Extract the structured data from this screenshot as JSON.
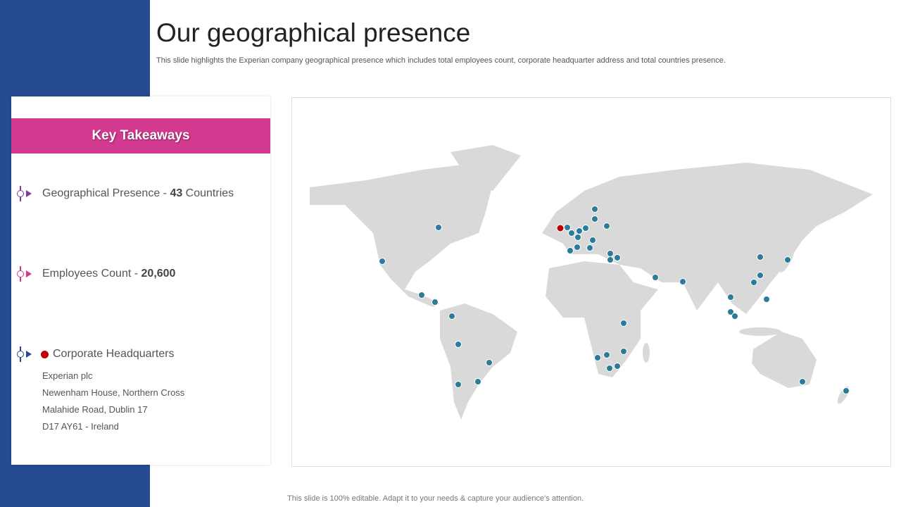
{
  "header": {
    "title": "Our geographical presence",
    "subtitle": "This slide highlights the Experian company geographical presence which includes total employees count, corporate headquarter address and total countries presence."
  },
  "takeaways": {
    "heading": "Key Takeaways",
    "items": [
      {
        "label": "Geographical Presence - ",
        "value": "43",
        "suffix": " Countries",
        "color": "#7b3f98"
      },
      {
        "label": "Employees Count - ",
        "value": "20,600",
        "color": "#d33a8f"
      },
      {
        "label": "Corporate Headquarters",
        "color": "#264a8f"
      }
    ],
    "address": [
      "Experian plc",
      "Newenham House, Northern Cross",
      "Malahide Road, Dublin 17",
      "D17 AY61 - Ireland"
    ]
  },
  "map": {
    "land_color": "#d9d9d9",
    "office_color": "#2b7c9b",
    "hq_color": "#c00000"
  },
  "footer": "This slide is 100% editable. Adapt it to your needs & capture your audience’s attention."
}
